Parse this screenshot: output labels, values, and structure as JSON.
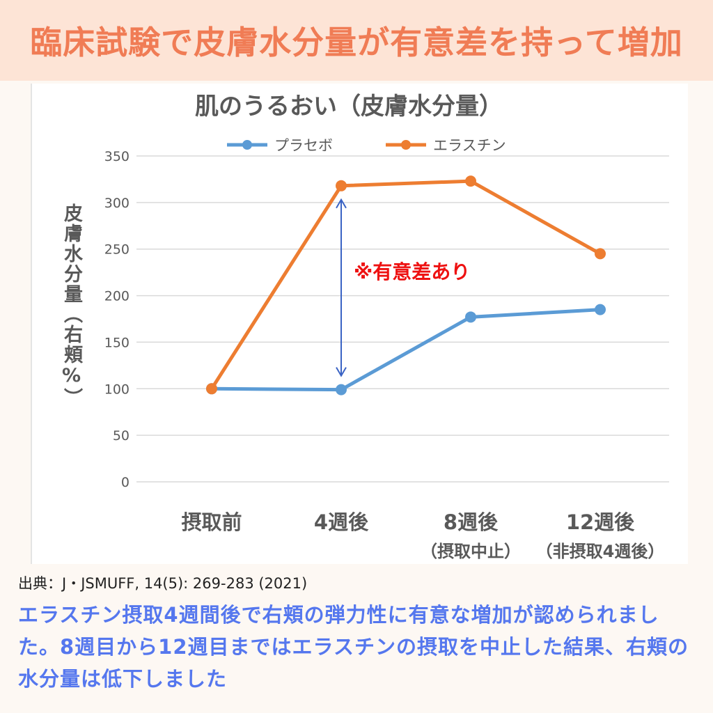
{
  "banner": {
    "title": "臨床試験で皮膚水分量が有意差を持って増加"
  },
  "source": "出典：J・JSMUFF, 14(5): 269-283 (2021)",
  "caption": "エラスチン摂取4週間後で右頬の弾力性に有意な増加が認められました。8週目から12週目まではエラスチンの摂取を中止した結果、右頬の水分量は低下しました",
  "colors": {
    "banner_bg": "#fde4d6",
    "banner_text": "#f07c55",
    "placebo": "#5b9bd5",
    "elastin": "#ed7d31",
    "annotation": "#ee1111",
    "arrow": "#3a63c4",
    "caption": "#5577ee"
  },
  "chart_data": {
    "type": "line",
    "title": "肌のうるおい（皮膚水分量）",
    "ylabel": "皮膚水分量（右頬%）",
    "xlabel": "",
    "categories": [
      "摂取前",
      "4週後",
      "8週後",
      "12週後"
    ],
    "category_sublabels": [
      "",
      "",
      "（摂取中止）",
      "（非摂取4週後）"
    ],
    "ylim": [
      0,
      350
    ],
    "yticks": [
      0,
      50,
      100,
      150,
      200,
      250,
      300,
      350
    ],
    "grid": true,
    "legend_position": "top",
    "series": [
      {
        "name": "プラセボ",
        "values": [
          100,
          99,
          177,
          185
        ],
        "color": "#5b9bd5"
      },
      {
        "name": "エラスチン",
        "values": [
          100,
          318,
          323,
          245
        ],
        "color": "#ed7d31"
      }
    ],
    "annotation": {
      "text": "※有意差あり",
      "category_index": 1,
      "from": 99,
      "to": 318
    }
  }
}
